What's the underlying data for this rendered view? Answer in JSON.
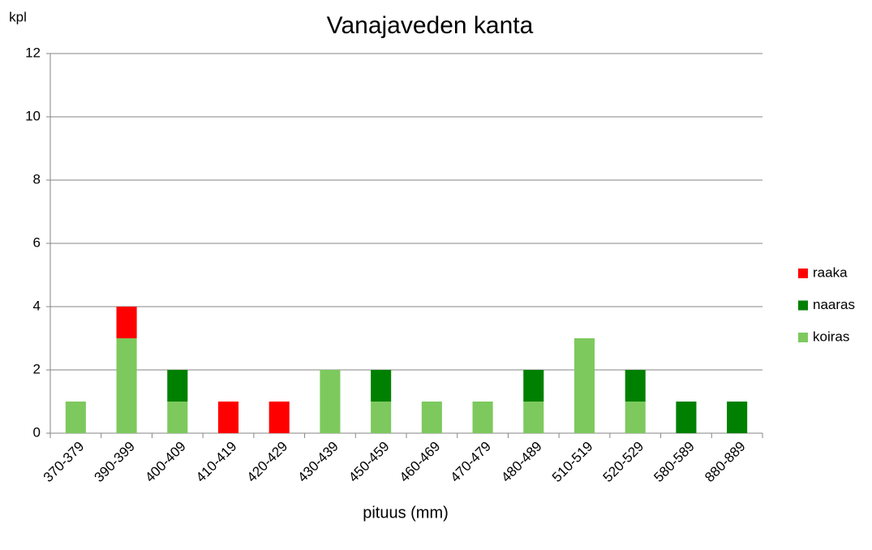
{
  "chart_data": {
    "type": "stacked_bar",
    "title": "Vanajaveden kanta",
    "y_axis_label": "kpl",
    "x_axis_label": "pituus (mm)",
    "categories": [
      "370-379",
      "390-399",
      "400-409",
      "410-419",
      "420-429",
      "430-439",
      "450-459",
      "460-469",
      "470-479",
      "480-489",
      "510-519",
      "520-529",
      "580-589",
      "880-889"
    ],
    "series": [
      {
        "name": "koiras",
        "color": "#7dc95e",
        "values": [
          1,
          3,
          1,
          0,
          0,
          2,
          1,
          1,
          1,
          1,
          3,
          1,
          0,
          0
        ]
      },
      {
        "name": "naaras",
        "color": "#008000",
        "values": [
          0,
          0,
          1,
          0,
          0,
          0,
          1,
          0,
          0,
          1,
          0,
          1,
          1,
          1
        ]
      },
      {
        "name": "raaka",
        "color": "#ff0000",
        "values": [
          0,
          1,
          0,
          1,
          1,
          0,
          0,
          0,
          0,
          0,
          0,
          0,
          0,
          0
        ]
      }
    ],
    "ylim": [
      0,
      12
    ],
    "yticks": [
      0,
      2,
      4,
      6,
      8,
      10,
      12
    ],
    "grid": true,
    "legend": "right"
  }
}
